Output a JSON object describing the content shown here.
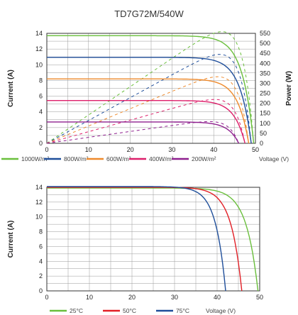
{
  "title": "TD7G72M/540W",
  "chart_data": [
    {
      "type": "line",
      "title": "TD7G72M/540W",
      "xlabel": "Voltage (V)",
      "ylabel": "Current (A)",
      "y2label": "Power (W)",
      "xlim": [
        0,
        50
      ],
      "ylim": [
        0,
        14
      ],
      "y2lim": [
        0,
        550
      ],
      "x_ticks": [
        "0",
        "10",
        "20",
        "30",
        "40",
        "50"
      ],
      "y_ticks": [
        "0",
        "2",
        "4",
        "6",
        "8",
        "10",
        "12",
        "14"
      ],
      "y2_ticks": [
        "0",
        "50",
        "100",
        "150",
        "200",
        "250",
        "300",
        "350",
        "400",
        "450",
        "500",
        "550"
      ],
      "grid": true,
      "legend_position": "bottom",
      "series": [
        {
          "name": "1000W/m²",
          "color": "#6abf3c",
          "isc": 13.7,
          "voc": 49.6,
          "pmax": 540
        },
        {
          "name": "800W/m²",
          "color": "#1f4e9a",
          "isc": 10.95,
          "voc": 49.0,
          "pmax": 430
        },
        {
          "name": "600W/m²",
          "color": "#ee8a2c",
          "isc": 8.2,
          "voc": 48.4,
          "pmax": 322
        },
        {
          "name": "400W/m²",
          "color": "#dd1f6a",
          "isc": 5.45,
          "voc": 47.5,
          "pmax": 212
        },
        {
          "name": "200W/m²",
          "color": "#8e1f8e",
          "isc": 2.72,
          "voc": 46.0,
          "pmax": 105
        }
      ]
    },
    {
      "type": "line",
      "xlabel": "Voltage (V)",
      "ylabel": "Current (A)",
      "xlim": [
        0,
        50
      ],
      "ylim": [
        0,
        14
      ],
      "x_ticks": [
        "0",
        "10",
        "20",
        "30",
        "40",
        "50"
      ],
      "y_ticks": [
        "0",
        "2",
        "4",
        "6",
        "8",
        "10",
        "12",
        "14"
      ],
      "grid": true,
      "legend_position": "bottom",
      "series": [
        {
          "name": "25°C",
          "color": "#6abf3c",
          "isc": 13.9,
          "voc": 49.6
        },
        {
          "name": "50°C",
          "color": "#e21f26",
          "isc": 14.0,
          "voc": 45.8
        },
        {
          "name": "75°C",
          "color": "#1f4e9a",
          "isc": 14.1,
          "voc": 42.0
        }
      ]
    }
  ]
}
